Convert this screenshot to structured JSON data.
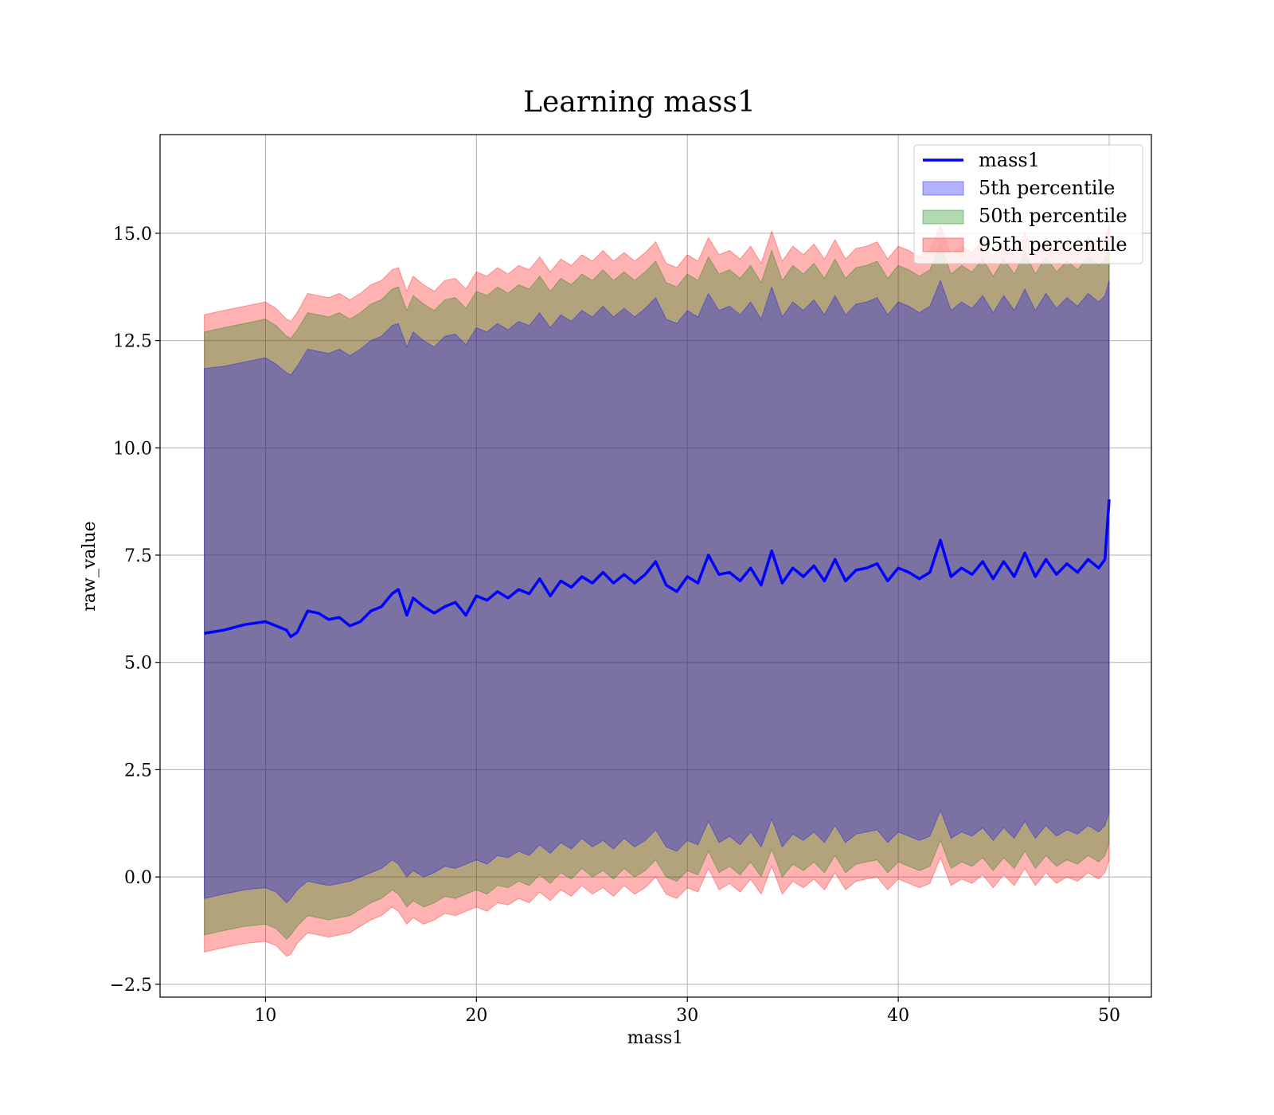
{
  "chart_data": {
    "type": "area",
    "title": "Learning mass1",
    "xlabel": "mass1",
    "ylabel": "raw_value",
    "xlim": [
      5,
      52
    ],
    "ylim": [
      -2.8,
      17.3
    ],
    "xticks": [
      10,
      20,
      30,
      40,
      50
    ],
    "yticks": [
      -2.5,
      0.0,
      2.5,
      5.0,
      7.5,
      10.0,
      12.5,
      15.0
    ],
    "xtick_labels": [
      "10",
      "20",
      "30",
      "40",
      "50"
    ],
    "ytick_labels": [
      "−2.5",
      "0.0",
      "2.5",
      "5.0",
      "7.5",
      "10.0",
      "12.5",
      "15.0"
    ],
    "grid": true,
    "legend_position": "upper right",
    "x": [
      7.1,
      8,
      9,
      10,
      10.5,
      11,
      11.2,
      11.5,
      12,
      12.5,
      13,
      13.5,
      14,
      14.5,
      15,
      15.5,
      16,
      16.3,
      16.7,
      17,
      17.5,
      18,
      18.5,
      19,
      19.5,
      20,
      20.5,
      21,
      21.5,
      22,
      22.5,
      23,
      23.5,
      24,
      24.5,
      25,
      25.5,
      26,
      26.5,
      27,
      27.5,
      28,
      28.5,
      29,
      29.5,
      30,
      30.5,
      31,
      31.5,
      32,
      32.5,
      33,
      33.5,
      34,
      34.5,
      35,
      35.5,
      36,
      36.5,
      37,
      37.5,
      38,
      38.5,
      39,
      39.5,
      40,
      40.5,
      41,
      41.5,
      42,
      42.5,
      43,
      43.5,
      44,
      44.5,
      45,
      45.5,
      46,
      46.5,
      47,
      47.5,
      48,
      48.5,
      49,
      49.5,
      49.8,
      50
    ],
    "series": [
      {
        "name": "mass1",
        "color": "#0000ff",
        "values": [
          5.68,
          5.75,
          5.88,
          5.95,
          5.85,
          5.75,
          5.6,
          5.7,
          6.2,
          6.15,
          6.0,
          6.05,
          5.85,
          5.95,
          6.2,
          6.3,
          6.6,
          6.7,
          6.1,
          6.5,
          6.3,
          6.15,
          6.3,
          6.4,
          6.1,
          6.55,
          6.45,
          6.65,
          6.5,
          6.7,
          6.6,
          6.95,
          6.55,
          6.9,
          6.75,
          7.0,
          6.85,
          7.1,
          6.85,
          7.05,
          6.85,
          7.05,
          7.35,
          6.8,
          6.65,
          7.0,
          6.85,
          7.5,
          7.05,
          7.1,
          6.9,
          7.2,
          6.8,
          7.6,
          6.85,
          7.2,
          7.0,
          7.25,
          6.9,
          7.4,
          6.9,
          7.15,
          7.2,
          7.3,
          6.9,
          7.2,
          7.1,
          6.95,
          7.1,
          7.85,
          7.0,
          7.2,
          7.05,
          7.35,
          6.95,
          7.35,
          7.0,
          7.55,
          7.0,
          7.4,
          7.05,
          7.3,
          7.1,
          7.4,
          7.2,
          7.4,
          8.8
        ]
      },
      {
        "name": "5th percentile",
        "color": "#0000ff",
        "lower": [
          -0.5,
          -0.4,
          -0.3,
          -0.25,
          -0.35,
          -0.6,
          -0.5,
          -0.3,
          -0.1,
          -0.15,
          -0.2,
          -0.15,
          -0.1,
          0.0,
          0.1,
          0.2,
          0.4,
          0.3,
          0.0,
          0.15,
          0.0,
          0.1,
          0.25,
          0.2,
          0.3,
          0.4,
          0.3,
          0.5,
          0.45,
          0.6,
          0.5,
          0.75,
          0.55,
          0.8,
          0.65,
          0.9,
          0.7,
          0.85,
          0.65,
          0.9,
          0.7,
          0.85,
          1.1,
          0.7,
          0.6,
          0.85,
          0.75,
          1.3,
          0.8,
          0.95,
          0.75,
          1.05,
          0.7,
          1.35,
          0.7,
          1.0,
          0.85,
          1.05,
          0.8,
          1.2,
          0.8,
          1.0,
          1.05,
          1.1,
          0.8,
          1.05,
          0.95,
          0.85,
          0.95,
          1.55,
          0.9,
          1.05,
          0.95,
          1.15,
          0.85,
          1.15,
          0.9,
          1.3,
          0.9,
          1.2,
          0.95,
          1.1,
          1.0,
          1.2,
          1.05,
          1.2,
          1.5
        ],
        "upper": [
          11.85,
          11.9,
          12.0,
          12.1,
          11.95,
          11.75,
          11.7,
          11.9,
          12.3,
          12.25,
          12.2,
          12.3,
          12.15,
          12.3,
          12.5,
          12.6,
          12.85,
          12.9,
          12.35,
          12.7,
          12.5,
          12.35,
          12.6,
          12.65,
          12.4,
          12.8,
          12.7,
          12.9,
          12.75,
          12.95,
          12.85,
          13.15,
          12.8,
          13.1,
          12.95,
          13.2,
          13.05,
          13.3,
          13.05,
          13.25,
          13.05,
          13.25,
          13.5,
          13.0,
          12.9,
          13.2,
          13.05,
          13.6,
          13.2,
          13.3,
          13.1,
          13.4,
          13.0,
          13.75,
          13.05,
          13.4,
          13.2,
          13.45,
          13.1,
          13.55,
          13.1,
          13.35,
          13.4,
          13.5,
          13.1,
          13.4,
          13.3,
          13.15,
          13.3,
          13.9,
          13.2,
          13.4,
          13.25,
          13.55,
          13.15,
          13.55,
          13.2,
          13.7,
          13.2,
          13.6,
          13.25,
          13.5,
          13.3,
          13.6,
          13.4,
          13.55,
          13.9
        ]
      },
      {
        "name": "50th percentile",
        "color": "#008000",
        "lower": [
          -1.35,
          -1.25,
          -1.15,
          -1.1,
          -1.2,
          -1.45,
          -1.35,
          -1.15,
          -0.9,
          -0.95,
          -1.0,
          -0.95,
          -0.9,
          -0.75,
          -0.6,
          -0.5,
          -0.3,
          -0.4,
          -0.7,
          -0.55,
          -0.7,
          -0.6,
          -0.45,
          -0.5,
          -0.4,
          -0.3,
          -0.4,
          -0.2,
          -0.25,
          -0.1,
          -0.2,
          0.05,
          -0.15,
          0.1,
          -0.05,
          0.2,
          0.0,
          0.15,
          -0.05,
          0.2,
          0.0,
          0.15,
          0.4,
          0.0,
          -0.1,
          0.15,
          0.05,
          0.6,
          0.1,
          0.25,
          0.05,
          0.35,
          0.0,
          0.65,
          0.0,
          0.3,
          0.15,
          0.35,
          0.1,
          0.5,
          0.1,
          0.3,
          0.35,
          0.4,
          0.1,
          0.35,
          0.25,
          0.15,
          0.25,
          0.85,
          0.2,
          0.35,
          0.25,
          0.45,
          0.15,
          0.45,
          0.2,
          0.6,
          0.2,
          0.5,
          0.25,
          0.4,
          0.3,
          0.5,
          0.35,
          0.5,
          0.8
        ],
        "upper": [
          12.7,
          12.8,
          12.9,
          13.0,
          12.85,
          12.6,
          12.55,
          12.75,
          13.15,
          13.1,
          13.05,
          13.15,
          13.0,
          13.15,
          13.35,
          13.45,
          13.7,
          13.75,
          13.2,
          13.55,
          13.35,
          13.2,
          13.45,
          13.5,
          13.25,
          13.65,
          13.55,
          13.75,
          13.6,
          13.8,
          13.7,
          14.0,
          13.65,
          13.95,
          13.8,
          14.05,
          13.9,
          14.15,
          13.9,
          14.1,
          13.9,
          14.1,
          14.35,
          13.85,
          13.75,
          14.05,
          13.9,
          14.45,
          14.05,
          14.15,
          13.95,
          14.25,
          13.85,
          14.6,
          13.9,
          14.25,
          14.05,
          14.3,
          13.95,
          14.4,
          13.95,
          14.2,
          14.25,
          14.35,
          13.95,
          14.25,
          14.15,
          14.0,
          14.15,
          14.75,
          14.05,
          14.25,
          14.1,
          14.4,
          14.0,
          14.4,
          14.05,
          14.55,
          14.05,
          14.45,
          14.1,
          14.35,
          14.15,
          14.45,
          14.25,
          14.4,
          14.75
        ]
      },
      {
        "name": "95th percentile",
        "color": "#ff0000",
        "lower": [
          -1.75,
          -1.65,
          -1.55,
          -1.5,
          -1.6,
          -1.85,
          -1.8,
          -1.55,
          -1.3,
          -1.35,
          -1.4,
          -1.35,
          -1.3,
          -1.15,
          -1.0,
          -0.9,
          -0.7,
          -0.8,
          -1.1,
          -0.95,
          -1.1,
          -1.0,
          -0.85,
          -0.9,
          -0.8,
          -0.7,
          -0.8,
          -0.6,
          -0.65,
          -0.5,
          -0.6,
          -0.35,
          -0.55,
          -0.3,
          -0.45,
          -0.2,
          -0.4,
          -0.25,
          -0.45,
          -0.2,
          -0.4,
          -0.25,
          0.0,
          -0.4,
          -0.5,
          -0.25,
          -0.35,
          0.2,
          -0.3,
          -0.15,
          -0.35,
          -0.05,
          -0.4,
          0.25,
          -0.4,
          -0.1,
          -0.25,
          -0.05,
          -0.3,
          0.1,
          -0.3,
          -0.1,
          -0.05,
          0.0,
          -0.3,
          -0.05,
          -0.15,
          -0.25,
          -0.15,
          0.45,
          -0.2,
          -0.05,
          -0.15,
          0.05,
          -0.25,
          0.05,
          -0.2,
          0.2,
          -0.2,
          0.1,
          -0.15,
          0.0,
          -0.1,
          0.1,
          -0.05,
          0.1,
          0.4
        ],
        "upper": [
          13.1,
          13.2,
          13.3,
          13.4,
          13.25,
          13.0,
          12.95,
          13.15,
          13.6,
          13.55,
          13.5,
          13.6,
          13.45,
          13.6,
          13.8,
          13.9,
          14.15,
          14.2,
          13.65,
          14.0,
          13.8,
          13.65,
          13.9,
          13.95,
          13.7,
          14.1,
          14.0,
          14.2,
          14.05,
          14.25,
          14.15,
          14.45,
          14.1,
          14.4,
          14.25,
          14.5,
          14.35,
          14.6,
          14.35,
          14.55,
          14.35,
          14.55,
          14.8,
          14.3,
          14.2,
          14.5,
          14.35,
          14.9,
          14.5,
          14.6,
          14.4,
          14.7,
          14.3,
          15.05,
          14.35,
          14.7,
          14.5,
          14.75,
          14.4,
          14.85,
          14.4,
          14.65,
          14.7,
          14.8,
          14.4,
          14.7,
          14.6,
          14.45,
          14.6,
          15.2,
          14.5,
          14.7,
          14.55,
          14.85,
          14.45,
          14.85,
          14.5,
          15.0,
          14.5,
          14.9,
          14.55,
          14.8,
          14.6,
          14.9,
          14.7,
          14.85,
          15.2
        ]
      }
    ]
  }
}
